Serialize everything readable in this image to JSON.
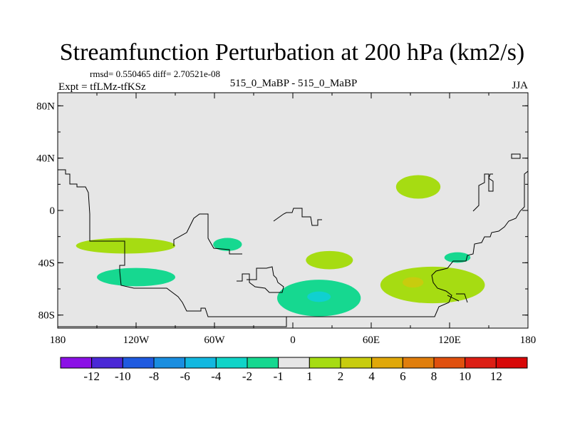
{
  "chart_data": {
    "type": "contour-map",
    "title": "Streamfunction Perturbation at 200 hPa (km2/s)",
    "stats": "rmsd= 0.550465 diff= 2.70521e-08",
    "left_label": "Expt = tfLMz-tfKSz",
    "center_label": "515_0_MaBP - 515_0_MaBP",
    "right_label": "JJA",
    "lon_range": [
      -180,
      180
    ],
    "lat_range": [
      -90,
      90
    ],
    "x_ticks": [
      {
        "lon": -180,
        "label": "180"
      },
      {
        "lon": -120,
        "label": "120W"
      },
      {
        "lon": -60,
        "label": "60W"
      },
      {
        "lon": 0,
        "label": "0"
      },
      {
        "lon": 60,
        "label": "60E"
      },
      {
        "lon": 120,
        "label": "120E"
      },
      {
        "lon": 180,
        "label": "180"
      }
    ],
    "y_ticks": [
      {
        "lat": 80,
        "label": "80N"
      },
      {
        "lat": 40,
        "label": "40N"
      },
      {
        "lat": 0,
        "label": "0"
      },
      {
        "lat": -40,
        "label": "40S"
      },
      {
        "lat": -80,
        "label": "80S"
      }
    ],
    "colorbar": {
      "labels": [
        "-12",
        "-10",
        "-8",
        "-6",
        "-4",
        "-2",
        "-1",
        "1",
        "2",
        "4",
        "6",
        "8",
        "10",
        "12"
      ],
      "colors": [
        "#8b10e6",
        "#4a28d6",
        "#1f5ae0",
        "#1a8ee0",
        "#12b8e0",
        "#10d4c8",
        "#16d890",
        "#e6e6e6",
        "#a6dc12",
        "#c8cc0e",
        "#e0a80a",
        "#e07e0c",
        "#e0500e",
        "#dc1e14",
        "#d80808"
      ]
    },
    "regions": [
      {
        "level": "1 to 2",
        "color": "#a6dc12",
        "center_lon": 96,
        "center_lat": 18,
        "semi_lon": 17,
        "semi_lat": 9
      },
      {
        "level": "1 to 2",
        "color": "#a6dc12",
        "center_lon": -128,
        "center_lat": -27,
        "semi_lon": 38,
        "semi_lat": 6
      },
      {
        "level": "1 to 2",
        "color": "#a6dc12",
        "center_lon": 28,
        "center_lat": -38,
        "semi_lon": 18,
        "semi_lat": 7
      },
      {
        "level": "1 to 2",
        "color": "#a6dc12",
        "center_lon": 107,
        "center_lat": -57,
        "semi_lon": 40,
        "semi_lat": 14
      },
      {
        "level": "2 to 4",
        "color": "#c8cc0e",
        "center_lon": 92,
        "center_lat": -55,
        "semi_lon": 8,
        "semi_lat": 4
      },
      {
        "level": "-2 to -1",
        "color": "#16d890",
        "center_lon": -50,
        "center_lat": -26,
        "semi_lon": 11,
        "semi_lat": 5
      },
      {
        "level": "-2 to -1",
        "color": "#16d890",
        "center_lon": -120,
        "center_lat": -51,
        "semi_lon": 30,
        "semi_lat": 7
      },
      {
        "level": "-2 to -1",
        "color": "#16d890",
        "center_lon": 20,
        "center_lat": -67,
        "semi_lon": 32,
        "semi_lat": 14
      },
      {
        "level": "-2 to -1",
        "color": "#16d890",
        "center_lon": 126,
        "center_lat": -36,
        "semi_lon": 10,
        "semi_lat": 4
      },
      {
        "level": "-4 to -2",
        "color": "#10d0d0",
        "center_lon": 20,
        "center_lat": -66,
        "semi_lon": 9,
        "semi_lat": 4
      }
    ]
  }
}
